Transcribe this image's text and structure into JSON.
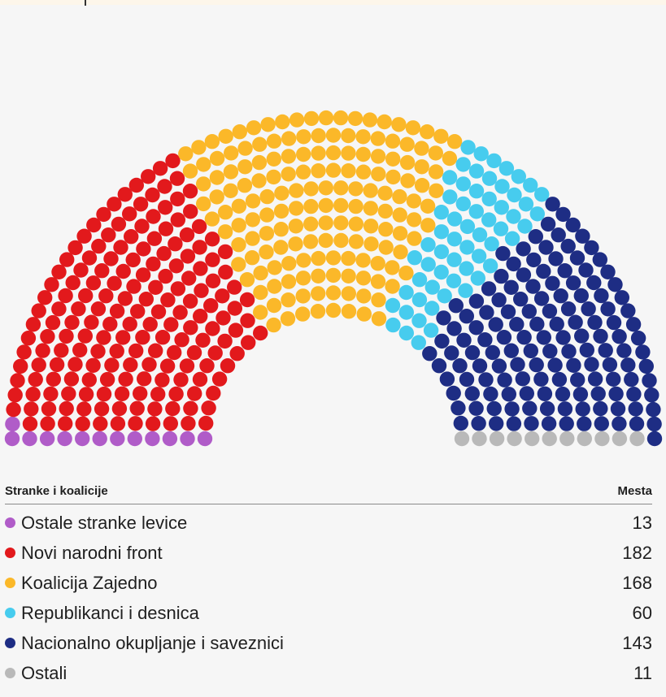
{
  "chart_data": {
    "type": "parliament",
    "title": "",
    "table_header": {
      "party": "Stranke i koalicije",
      "seats": "Mesta"
    },
    "series": [
      {
        "name": "Ostale stranke levice",
        "value": 13,
        "color": "#b05cc8"
      },
      {
        "name": "Novi narodni front",
        "value": 182,
        "color": "#e2191c"
      },
      {
        "name": "Koalicija Zajedno",
        "value": 168,
        "color": "#fbb829"
      },
      {
        "name": "Republikanci i desnica",
        "value": 60,
        "color": "#47ccee"
      },
      {
        "name": "Nacionalno okupljanje i saveznici",
        "value": 143,
        "color": "#1e2d84"
      },
      {
        "name": "Ostali",
        "value": 11,
        "color": "#b9b9b9"
      }
    ]
  }
}
